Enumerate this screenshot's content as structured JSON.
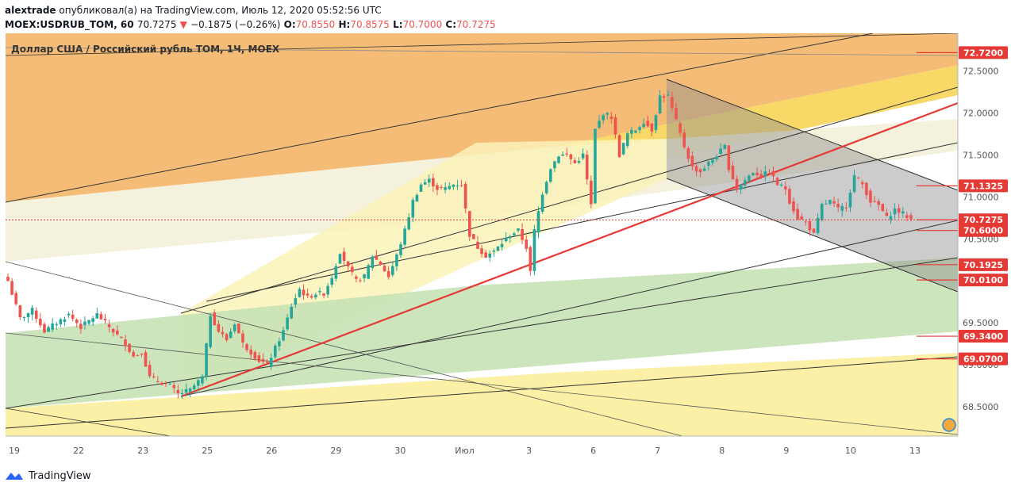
{
  "header": {
    "author": "alextrade",
    "published_text": "опубликовал(а) на TradingView.com, Июль 12, 2020 05:52:56 UTC",
    "symbol": "MOEX:USDRUB_TOM, 60",
    "last": "70.7275",
    "change_arrow": "▼",
    "change": "−0.1875 (−0.26%)",
    "o_label": "O:",
    "o_value": "70.8550",
    "h_label": "H:",
    "h_value": "70.8575",
    "l_label": "L:",
    "l_value": "70.7000",
    "c_label": "C:",
    "c_value": "70.7275"
  },
  "chart_title": "Доллар США / Российский рубль TOM, 1Ч, MOEX",
  "watermark": {
    "symbol": "USDRUB_TOM, 1Ч",
    "description": "Доллар США / Российский рубль TOM"
  },
  "footer": {
    "brand": "TradingView"
  },
  "colors": {
    "up": "#26a69a",
    "down": "#ef5350",
    "orange": "#f5a742",
    "yellow": "#f9e07a",
    "green": "#c5e3b5",
    "gray": "#9e9e9e",
    "red_line": "#e53935",
    "label_bg": "#e53935"
  },
  "chart_data": {
    "type": "candlestick",
    "ylim": [
      68.15,
      72.95
    ],
    "y_ticks": [
      68.5,
      69.0,
      69.5,
      70.0,
      70.5,
      71.0,
      71.5,
      72.0,
      72.5
    ],
    "y_tick_labels": [
      "68.5000",
      "69.0000",
      "69.5000",
      "70.0000",
      "70.5000",
      "71.0000",
      "71.5000",
      "72.0000",
      "72.5000"
    ],
    "x_labels": [
      "19",
      "22",
      "23",
      "25",
      "26",
      "29",
      "30",
      "Июл",
      "3",
      "6",
      "7",
      "8",
      "9",
      "10",
      "13"
    ],
    "price_labels": [
      {
        "value": 72.72,
        "text": "72.7200"
      },
      {
        "value": 71.1325,
        "text": "71.1325"
      },
      {
        "value": 70.7275,
        "text": "70.7275"
      },
      {
        "value": 70.6,
        "text": "70.6000"
      },
      {
        "value": 70.1925,
        "text": "70.1925"
      },
      {
        "value": 70.01,
        "text": "70.0100"
      },
      {
        "value": 69.34,
        "text": "69.3400"
      },
      {
        "value": 69.07,
        "text": "69.0700"
      }
    ],
    "last_price": 70.7275,
    "close_path": [
      [
        0,
        70.0
      ],
      [
        3,
        69.55
      ],
      [
        6,
        69.65
      ],
      [
        9,
        69.4
      ],
      [
        12,
        69.5
      ],
      [
        15,
        69.6
      ],
      [
        18,
        69.45
      ],
      [
        22,
        69.6
      ],
      [
        26,
        69.4
      ],
      [
        29,
        69.25
      ],
      [
        31,
        69.1
      ],
      [
        33,
        69.15
      ],
      [
        35,
        68.85
      ],
      [
        37,
        68.8
      ],
      [
        40,
        68.75
      ],
      [
        42,
        68.65
      ],
      [
        45,
        68.7
      ],
      [
        48,
        68.85
      ],
      [
        50,
        69.6
      ],
      [
        52,
        69.4
      ],
      [
        54,
        69.3
      ],
      [
        56,
        69.5
      ],
      [
        58,
        69.25
      ],
      [
        60,
        69.15
      ],
      [
        62,
        69.05
      ],
      [
        64,
        69.0
      ],
      [
        66,
        69.2
      ],
      [
        68,
        69.4
      ],
      [
        70,
        69.7
      ],
      [
        72,
        69.9
      ],
      [
        74,
        69.8
      ],
      [
        76,
        69.85
      ],
      [
        78,
        69.85
      ],
      [
        80,
        70.05
      ],
      [
        82,
        70.35
      ],
      [
        84,
        70.15
      ],
      [
        86,
        70.0
      ],
      [
        88,
        70.05
      ],
      [
        90,
        70.3
      ],
      [
        92,
        70.2
      ],
      [
        94,
        70.05
      ],
      [
        96,
        70.3
      ],
      [
        98,
        70.6
      ],
      [
        100,
        70.95
      ],
      [
        102,
        71.15
      ],
      [
        104,
        71.2
      ],
      [
        106,
        71.1
      ],
      [
        108,
        71.1
      ],
      [
        110,
        71.15
      ],
      [
        112,
        71.15
      ],
      [
        113,
        70.85
      ],
      [
        114,
        70.55
      ],
      [
        116,
        70.4
      ],
      [
        118,
        70.3
      ],
      [
        120,
        70.35
      ],
      [
        122,
        70.45
      ],
      [
        124,
        70.55
      ],
      [
        126,
        70.6
      ],
      [
        128,
        70.4
      ],
      [
        129,
        70.1
      ],
      [
        130,
        70.6
      ],
      [
        132,
        71.05
      ],
      [
        134,
        71.35
      ],
      [
        136,
        71.5
      ],
      [
        138,
        71.5
      ],
      [
        140,
        71.4
      ],
      [
        142,
        71.5
      ],
      [
        144,
        70.9
      ],
      [
        145,
        71.8
      ],
      [
        147,
        72.0
      ],
      [
        149,
        71.95
      ],
      [
        151,
        71.5
      ],
      [
        153,
        71.75
      ],
      [
        155,
        71.8
      ],
      [
        157,
        71.9
      ],
      [
        159,
        71.8
      ],
      [
        161,
        72.2
      ],
      [
        163,
        72.2
      ],
      [
        165,
        71.9
      ],
      [
        167,
        71.6
      ],
      [
        169,
        71.35
      ],
      [
        171,
        71.3
      ],
      [
        173,
        71.4
      ],
      [
        175,
        71.5
      ],
      [
        177,
        71.6
      ],
      [
        178,
        71.35
      ],
      [
        180,
        71.1
      ],
      [
        182,
        71.2
      ],
      [
        184,
        71.3
      ],
      [
        186,
        71.25
      ],
      [
        188,
        71.3
      ],
      [
        190,
        71.15
      ],
      [
        192,
        71.1
      ],
      [
        193,
        70.95
      ],
      [
        195,
        70.75
      ],
      [
        197,
        70.7
      ],
      [
        199,
        70.55
      ],
      [
        201,
        70.9
      ],
      [
        203,
        70.95
      ],
      [
        205,
        70.85
      ],
      [
        207,
        70.9
      ],
      [
        209,
        71.25
      ],
      [
        211,
        71.15
      ],
      [
        213,
        70.95
      ],
      [
        215,
        70.9
      ],
      [
        217,
        70.75
      ],
      [
        219,
        70.85
      ],
      [
        221,
        70.8
      ],
      [
        223,
        70.73
      ]
    ]
  }
}
